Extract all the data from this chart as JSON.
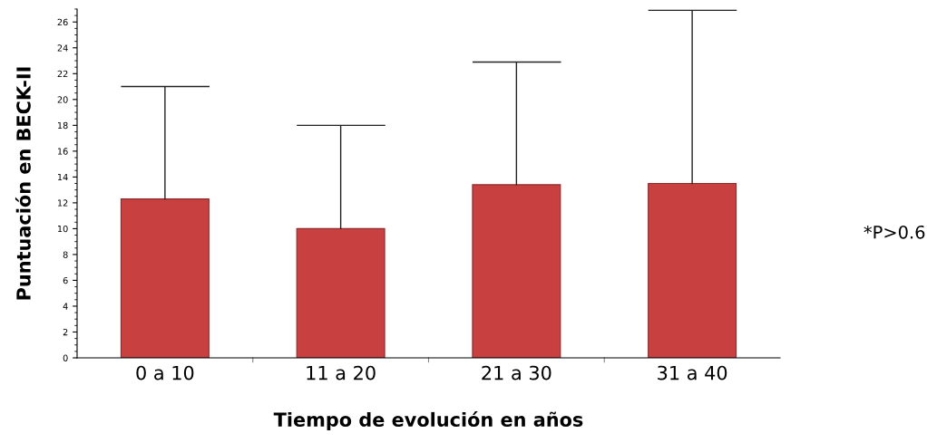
{
  "chart_data": {
    "type": "bar",
    "xlabel": "Tiempo de evolución en años",
    "ylabel": "Puntuación en BECK-II",
    "categories": [
      "0 a 10",
      "11 a 20",
      "21 a 30",
      "31 a 40"
    ],
    "values": [
      12.3,
      10.0,
      13.4,
      13.5
    ],
    "errors": [
      [
        12.3,
        21.0
      ],
      [
        10.0,
        18.0
      ],
      [
        13.4,
        22.9
      ],
      [
        13.5,
        26.9
      ]
    ],
    "color": "#c94040",
    "ylim": [
      0,
      27
    ],
    "yticks": [
      0,
      2,
      4,
      6,
      8,
      10,
      12,
      14,
      16,
      18,
      20,
      22,
      24,
      26
    ],
    "annotations": [
      "*P>0.6"
    ],
    "grid": false,
    "legend": false
  }
}
